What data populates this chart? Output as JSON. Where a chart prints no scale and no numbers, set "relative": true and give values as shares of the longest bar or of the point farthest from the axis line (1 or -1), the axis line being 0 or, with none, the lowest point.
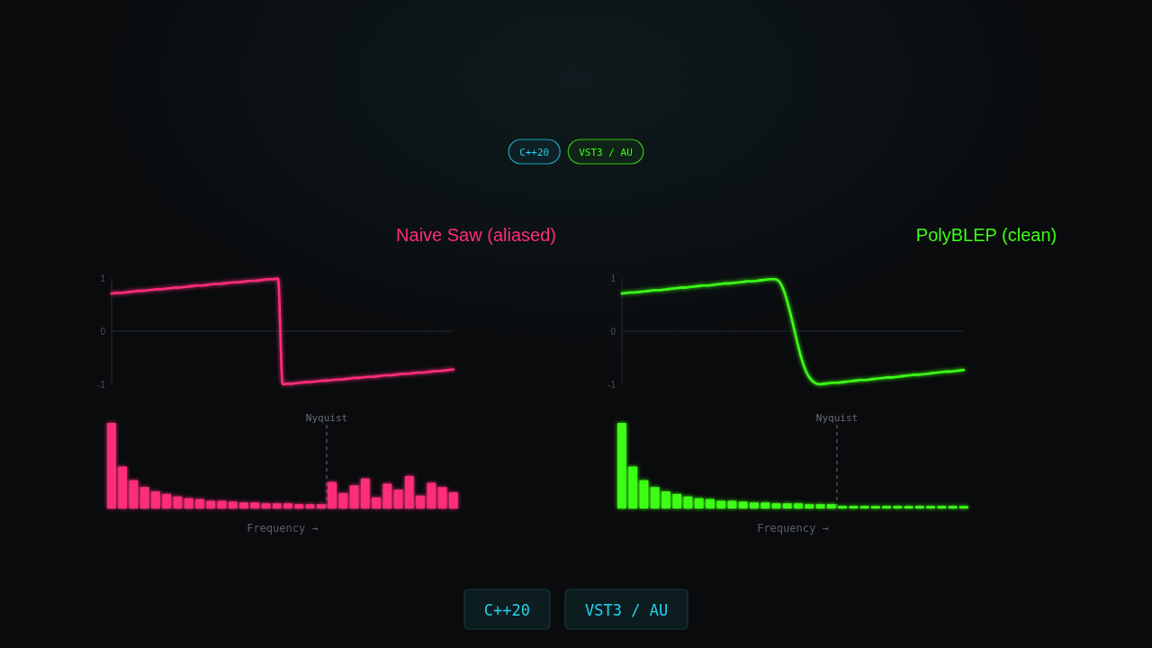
{
  "chart_data": [
    {
      "type": "line",
      "title": "Naive Saw (aliased)",
      "tick_labels": "y",
      "ylim": [
        -1,
        1
      ],
      "yticks": [
        -1,
        0,
        1
      ],
      "categories": [
        null,
        null,
        null,
        null,
        null,
        null,
        null,
        null,
        null,
        null,
        null,
        null,
        null,
        null,
        null,
        null,
        null,
        null,
        null,
        null,
        null,
        null,
        null,
        null,
        null,
        null,
        null,
        null,
        null,
        null,
        null,
        null,
        null,
        null,
        null,
        null,
        null,
        null,
        null,
        null,
        null,
        null,
        null,
        null,
        null,
        null,
        null,
        null,
        null,
        null,
        null,
        null,
        null,
        null,
        null,
        null,
        null,
        null,
        null,
        null,
        null,
        null,
        null,
        null,
        null,
        null,
        null,
        null,
        null,
        null,
        null,
        null,
        null,
        null,
        null,
        null,
        null
      ],
      "ref_lines": [
        {
          "axis": "y",
          "value": 0,
          "color": "#1d2026"
        }
      ],
      "series": [
        {
          "color": "#ff2d78",
          "values": [
            0.71,
            0.72,
            0.72,
            0.73,
            0.74,
            0.75,
            0.76,
            0.76,
            0.77,
            0.78,
            0.79,
            0.79,
            0.8,
            0.81,
            0.82,
            0.82,
            0.83,
            0.84,
            0.85,
            0.86,
            0.86,
            0.87,
            0.88,
            0.89,
            0.89,
            0.9,
            0.91,
            0.92,
            0.92,
            0.93,
            0.94,
            0.95,
            0.95,
            0.96,
            0.97,
            0.98,
            0.98,
            0.99,
            -1.0,
            -0.99,
            -0.99,
            -0.98,
            -0.97,
            -0.96,
            -0.96,
            -0.95,
            -0.94,
            -0.93,
            -0.93,
            -0.92,
            -0.91,
            -0.91,
            -0.9,
            -0.89,
            -0.88,
            -0.88,
            -0.87,
            -0.86,
            -0.86,
            -0.85,
            -0.84,
            -0.83,
            -0.83,
            -0.82,
            -0.81,
            -0.8,
            -0.8,
            -0.79,
            -0.78,
            -0.78,
            -0.77,
            -0.76,
            -0.75,
            -0.75,
            -0.74,
            -0.73,
            -0.72
          ]
        }
      ]
    },
    {
      "type": "bar",
      "relative": true,
      "tick_labels": false,
      "xlabel": "Frequency →",
      "annotations": [
        "Nyquist"
      ],
      "categories": [
        null,
        null,
        null,
        null,
        null,
        null,
        null,
        null,
        null,
        null,
        null,
        null,
        null,
        null,
        null,
        null,
        null,
        null,
        null,
        null,
        null,
        null,
        null,
        null,
        null,
        null,
        null,
        null,
        null,
        null,
        null,
        null
      ],
      "series": [
        {
          "color": "#ff2d78",
          "values": [
            1,
            0.49,
            0.33,
            0.25,
            0.2,
            0.17,
            0.14,
            0.12,
            0.11,
            0.09,
            0.09,
            0.08,
            0.07,
            0.07,
            0.06,
            0.06,
            0.06,
            0.05,
            0.05,
            0.05,
            0.31,
            0.18,
            0.27,
            0.35,
            0.13,
            0.29,
            0.22,
            0.38,
            0.15,
            0.3,
            0.25,
            0.19
          ]
        }
      ]
    },
    {
      "type": "line",
      "title": "PolyBLEP (clean)",
      "tick_labels": "y",
      "ylim": [
        -1,
        1
      ],
      "yticks": [
        -1,
        0,
        1
      ],
      "categories": [
        null,
        null,
        null,
        null,
        null,
        null,
        null,
        null,
        null,
        null,
        null,
        null,
        null,
        null,
        null,
        null,
        null,
        null,
        null,
        null,
        null,
        null,
        null,
        null,
        null,
        null,
        null,
        null,
        null,
        null,
        null,
        null,
        null,
        null,
        null,
        null,
        null,
        null,
        null,
        null,
        null,
        null,
        null,
        null,
        null,
        null,
        null,
        null,
        null,
        null,
        null,
        null,
        null,
        null,
        null,
        null,
        null,
        null,
        null,
        null,
        null,
        null,
        null,
        null,
        null,
        null,
        null,
        null,
        null,
        null,
        null,
        null,
        null,
        null,
        null,
        null,
        null
      ],
      "ref_lines": [
        {
          "axis": "y",
          "value": 0,
          "color": "#1d2026"
        }
      ],
      "series": [
        {
          "color": "#3cff14",
          "values": [
            0.71,
            0.72,
            0.73,
            0.73,
            0.74,
            0.75,
            0.76,
            0.77,
            0.77,
            0.78,
            0.79,
            0.8,
            0.81,
            0.82,
            0.82,
            0.83,
            0.84,
            0.85,
            0.86,
            0.86,
            0.87,
            0.88,
            0.89,
            0.9,
            0.9,
            0.91,
            0.92,
            0.93,
            0.94,
            0.94,
            0.95,
            0.96,
            0.97,
            0.98,
            0.98,
            0.93,
            0.76,
            0.48,
            0.14,
            -0.22,
            -0.54,
            -0.77,
            -0.91,
            -0.98,
            -1.0,
            -0.99,
            -0.98,
            -0.97,
            -0.97,
            -0.96,
            -0.95,
            -0.94,
            -0.93,
            -0.92,
            -0.92,
            -0.91,
            -0.9,
            -0.89,
            -0.88,
            -0.87,
            -0.87,
            -0.86,
            -0.85,
            -0.84,
            -0.83,
            -0.82,
            -0.82,
            -0.81,
            -0.8,
            -0.79,
            -0.78,
            -0.77,
            -0.76,
            -0.76,
            -0.75,
            -0.74,
            -0.73
          ]
        }
      ]
    },
    {
      "type": "bar",
      "relative": true,
      "tick_labels": false,
      "xlabel": "Frequency →",
      "annotations": [
        "Nyquist"
      ],
      "categories": [
        null,
        null,
        null,
        null,
        null,
        null,
        null,
        null,
        null,
        null,
        null,
        null,
        null,
        null,
        null,
        null,
        null,
        null,
        null,
        null,
        null,
        null,
        null,
        null,
        null,
        null,
        null,
        null,
        null,
        null,
        null,
        null
      ],
      "series": [
        {
          "color": "#3cff14",
          "values": [
            1,
            0.49,
            0.33,
            0.25,
            0.2,
            0.17,
            0.14,
            0.12,
            0.11,
            0.09,
            0.09,
            0.08,
            0.07,
            0.07,
            0.06,
            0.06,
            0.06,
            0.05,
            0.05,
            0.05,
            0.03,
            0.03,
            0.03,
            0.03,
            0.03,
            0.03,
            0.03,
            0.03,
            0.03,
            0.03,
            0.03,
            0.03
          ]
        }
      ]
    },
    {
      "type": "other",
      "annotations": [
        "C++20",
        "VST3 / AU"
      ]
    },
    {
      "type": "other",
      "annotations": [
        "C++20",
        "VST3 / AU"
      ]
    }
  ]
}
